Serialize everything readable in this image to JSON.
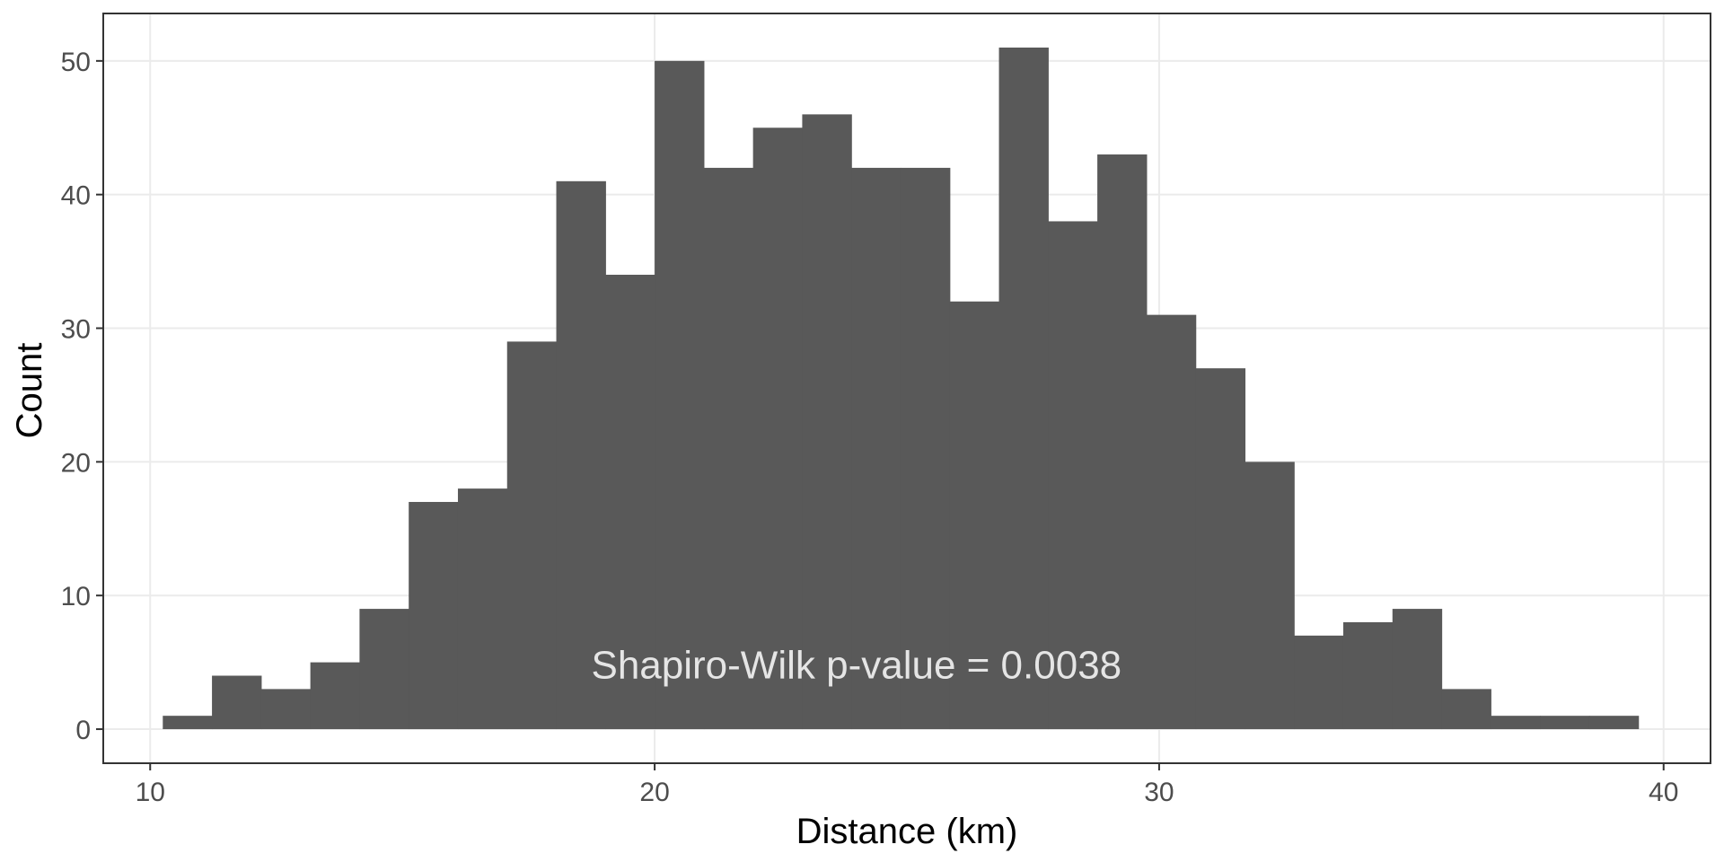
{
  "chart_data": {
    "type": "bar",
    "subtype": "histogram",
    "title": "",
    "xlabel": "Distance (km)",
    "ylabel": "Count",
    "xlim": [
      9.07,
      40.93
    ],
    "ylim": [
      -2.55,
      53.55
    ],
    "xticks": [
      10,
      20,
      30,
      40
    ],
    "yticks": [
      0,
      10,
      20,
      30,
      40,
      50
    ],
    "grid": true,
    "bin_width": 0.975,
    "bin_start": 10.25,
    "values": [
      1,
      4,
      3,
      5,
      9,
      17,
      18,
      29,
      41,
      34,
      50,
      42,
      45,
      46,
      42,
      42,
      32,
      51,
      38,
      43,
      31,
      27,
      20,
      7,
      8,
      9,
      3,
      1,
      1,
      1
    ],
    "bar_color": "#595959",
    "annotation": {
      "text": "Shapiro-Wilk p-value = 0.0038",
      "x": 24,
      "y": 4.8,
      "color": "#e5e5e5"
    }
  }
}
